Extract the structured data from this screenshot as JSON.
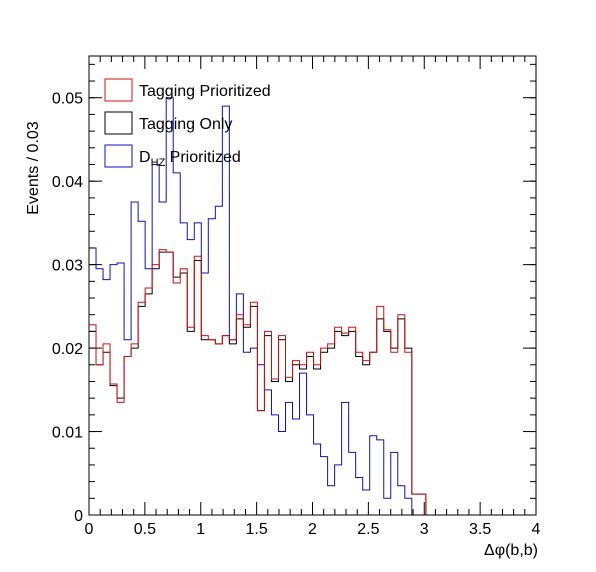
{
  "chart_data": {
    "type": "histogram-step",
    "title": "",
    "xlabel": "Δφ(b,b)",
    "ylabel": "Events / 0.03",
    "xlim": [
      0,
      4
    ],
    "ylim": [
      0,
      0.055
    ],
    "x_ticks": [
      0,
      0.5,
      1,
      1.5,
      2,
      2.5,
      3,
      3.5,
      4
    ],
    "y_ticks": [
      0,
      0.01,
      0.02,
      0.03,
      0.04,
      0.05
    ],
    "bin_width": 0.0628,
    "grid": false,
    "legend_position": "top-left",
    "series": [
      {
        "name": "Tagging Prioritized",
        "name_main": "Tagging Prioritized",
        "name_sub": "",
        "name_tail": "",
        "color": "#d01010",
        "values": [
          0.0228,
          0.018,
          0.0205,
          0.0157,
          0.0135,
          0.019,
          0.0205,
          0.0255,
          0.0272,
          0.03,
          0.0318,
          0.0315,
          0.0278,
          0.0295,
          0.0225,
          0.031,
          0.0215,
          0.021,
          0.0205,
          0.0215,
          0.021,
          0.024,
          0.0228,
          0.0255,
          0.0125,
          0.022,
          0.0163,
          0.0215,
          0.0165,
          0.0185,
          0.018,
          0.0195,
          0.018,
          0.02,
          0.0205,
          0.0225,
          0.0218,
          0.0225,
          0.0195,
          0.0185,
          0.0195,
          0.025,
          0.0222,
          0.0195,
          0.024,
          0.0195,
          0.0025,
          0.0025,
          0,
          0,
          0,
          0,
          0,
          0,
          0,
          0,
          0,
          0,
          0,
          0,
          0,
          0,
          0,
          0
        ]
      },
      {
        "name": "Tagging Only",
        "name_main": "Tagging Only",
        "name_sub": "",
        "name_tail": "",
        "color": "#000000",
        "values": [
          0.022,
          0.018,
          0.0195,
          0.0155,
          0.014,
          0.019,
          0.02,
          0.025,
          0.0265,
          0.0295,
          0.0315,
          0.0315,
          0.0285,
          0.029,
          0.022,
          0.0305,
          0.021,
          0.021,
          0.0205,
          0.0215,
          0.0205,
          0.0235,
          0.0225,
          0.025,
          0.0125,
          0.0215,
          0.016,
          0.021,
          0.016,
          0.018,
          0.0175,
          0.019,
          0.0175,
          0.0195,
          0.02,
          0.022,
          0.0215,
          0.022,
          0.019,
          0.018,
          0.0195,
          0.0235,
          0.022,
          0.02,
          0.0235,
          0.02,
          0.0025,
          0.0025,
          0,
          0,
          0,
          0,
          0,
          0,
          0,
          0,
          0,
          0,
          0,
          0,
          0,
          0,
          0,
          0
        ]
      },
      {
        "name": "D_HZ Prioritized",
        "name_main": "D",
        "name_sub": "HZ",
        "name_tail": " Prioritized",
        "color": "#1010c0",
        "values": [
          0.032,
          0.0295,
          0.0282,
          0.03,
          0.0302,
          0.021,
          0.0375,
          0.0352,
          0.0295,
          0.042,
          0.0375,
          0.05,
          0.041,
          0.035,
          0.033,
          0.035,
          0.029,
          0.0355,
          0.037,
          0.049,
          0.021,
          0.0265,
          0.0195,
          0.02,
          0.018,
          0.015,
          0.012,
          0.01,
          0.0135,
          0.0115,
          0.017,
          0.012,
          0.0085,
          0.007,
          0.0035,
          0.006,
          0.0135,
          0.0075,
          0.0045,
          0.003,
          0.0095,
          0.009,
          0.002,
          0.0075,
          0.0035,
          0.002,
          0,
          0,
          0,
          0,
          0,
          0,
          0,
          0,
          0,
          0,
          0,
          0,
          0,
          0,
          0,
          0,
          0,
          0
        ]
      }
    ]
  }
}
